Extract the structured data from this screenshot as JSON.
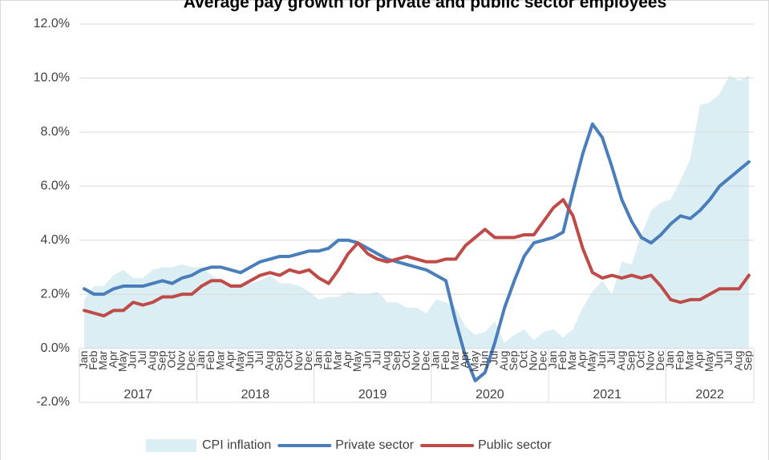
{
  "chart_data": {
    "type": "line",
    "title": "Average pay growth for private and public sector employees",
    "categories": [
      "Jan",
      "Feb",
      "Mar",
      "Apr",
      "May",
      "Jun",
      "Jul",
      "Aug",
      "Sep",
      "Oct",
      "Nov",
      "Dec",
      "Jan",
      "Feb",
      "Mar",
      "Apr",
      "May",
      "Jun",
      "Jul",
      "Aug",
      "Sep",
      "Oct",
      "Nov",
      "Dec",
      "Jan",
      "Feb",
      "Mar",
      "Apr",
      "May",
      "Jun",
      "Jul",
      "Aug",
      "Sep",
      "Oct",
      "Nov",
      "Dec",
      "Jan",
      "Feb",
      "Mar",
      "Apr",
      "May",
      "Jun",
      "Jul",
      "Aug",
      "Sep",
      "Oct",
      "Nov",
      "Dec",
      "Jan",
      "Feb",
      "Mar",
      "Apr",
      "May",
      "Jun",
      "Jul",
      "Aug",
      "Sep",
      "Oct",
      "Nov",
      "Dec",
      "Jan",
      "Feb",
      "Mar",
      "Apr",
      "May",
      "Jun",
      "Jul",
      "Aug",
      "Sep"
    ],
    "years": [
      "2017",
      "2018",
      "2019",
      "2020",
      "2021",
      "2022"
    ],
    "series": [
      {
        "name": "CPI inflation",
        "type": "area",
        "color": "#daeef3",
        "values": [
          1.8,
          2.3,
          2.3,
          2.7,
          2.9,
          2.6,
          2.6,
          2.9,
          3.0,
          3.0,
          3.1,
          3.0,
          3.0,
          2.7,
          2.5,
          2.4,
          2.4,
          2.4,
          2.5,
          2.7,
          2.4,
          2.4,
          2.3,
          2.1,
          1.8,
          1.9,
          1.9,
          2.1,
          2.0,
          2.0,
          2.1,
          1.7,
          1.7,
          1.5,
          1.5,
          1.3,
          1.8,
          1.7,
          1.5,
          0.8,
          0.5,
          0.6,
          1.0,
          0.2,
          0.5,
          0.7,
          0.3,
          0.6,
          0.7,
          0.4,
          0.7,
          1.5,
          2.1,
          2.5,
          2.0,
          3.2,
          3.1,
          4.2,
          5.1,
          5.4,
          5.5,
          6.2,
          7.0,
          9.0,
          9.1,
          9.4,
          10.1,
          9.9,
          10.1
        ]
      },
      {
        "name": "Private sector",
        "type": "line",
        "color": "#4a7ebb",
        "values": [
          2.2,
          2.0,
          2.0,
          2.2,
          2.3,
          2.3,
          2.3,
          2.4,
          2.5,
          2.4,
          2.6,
          2.7,
          2.9,
          3.0,
          3.0,
          2.9,
          2.8,
          3.0,
          3.2,
          3.3,
          3.4,
          3.4,
          3.5,
          3.6,
          3.6,
          3.7,
          4.0,
          4.0,
          3.9,
          3.7,
          3.5,
          3.3,
          3.2,
          3.1,
          3.0,
          2.9,
          2.7,
          2.5,
          1.0,
          -0.3,
          -1.2,
          -0.9,
          0.2,
          1.5,
          2.5,
          3.4,
          3.9,
          4.0,
          4.1,
          4.3,
          5.8,
          7.2,
          8.3,
          7.8,
          6.7,
          5.5,
          4.7,
          4.1,
          3.9,
          4.2,
          4.6,
          4.9,
          4.8,
          5.1,
          5.5,
          6.0,
          6.3,
          6.6,
          6.9
        ]
      },
      {
        "name": "Public sector",
        "type": "line",
        "color": "#be4b48",
        "values": [
          1.4,
          1.3,
          1.2,
          1.4,
          1.4,
          1.7,
          1.6,
          1.7,
          1.9,
          1.9,
          2.0,
          2.0,
          2.3,
          2.5,
          2.5,
          2.3,
          2.3,
          2.5,
          2.7,
          2.8,
          2.7,
          2.9,
          2.8,
          2.9,
          2.6,
          2.4,
          2.9,
          3.5,
          3.9,
          3.5,
          3.3,
          3.2,
          3.3,
          3.4,
          3.3,
          3.2,
          3.2,
          3.3,
          3.3,
          3.8,
          4.1,
          4.4,
          4.1,
          4.1,
          4.1,
          4.2,
          4.2,
          4.7,
          5.2,
          5.5,
          4.9,
          3.7,
          2.8,
          2.6,
          2.7,
          2.6,
          2.7,
          2.6,
          2.7,
          2.3,
          1.8,
          1.7,
          1.8,
          1.8,
          2.0,
          2.2,
          2.2,
          2.2,
          2.7
        ]
      }
    ],
    "ylim": [
      -2,
      12
    ],
    "yticks": [
      {
        "value": -2,
        "label": "-2.0%"
      },
      {
        "value": 0,
        "label": "0.0%"
      },
      {
        "value": 2,
        "label": "2.0%"
      },
      {
        "value": 4,
        "label": "4.0%"
      },
      {
        "value": 6,
        "label": "6.0%"
      },
      {
        "value": 8,
        "label": "8.0%"
      },
      {
        "value": 10,
        "label": "10.0%"
      },
      {
        "value": 12,
        "label": "12.0%"
      }
    ],
    "grid": true,
    "legend": "bottom"
  }
}
